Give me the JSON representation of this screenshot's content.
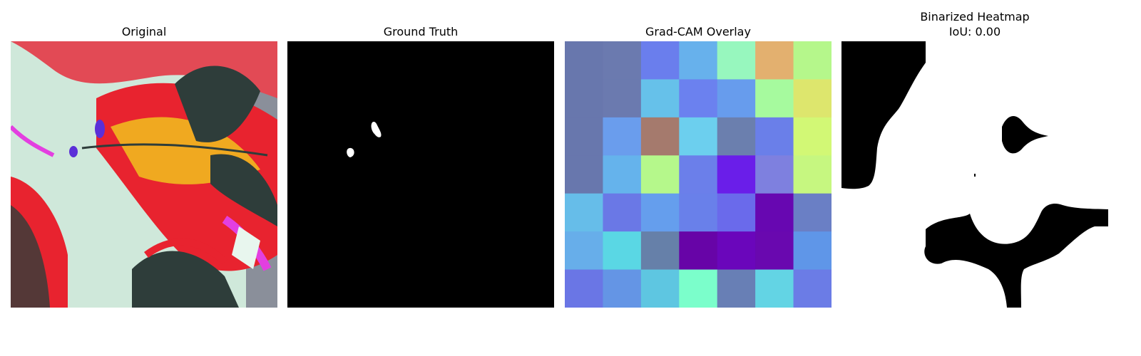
{
  "panels": {
    "original": {
      "title": "Original"
    },
    "ground_truth": {
      "title": "Ground Truth"
    },
    "gradcam": {
      "title": "Grad-CAM Overlay",
      "grid": [
        [
          "#6877ad",
          "#6b7aaf",
          "#6a7eed",
          "#67b1ec",
          "#97f7be",
          "#e3b06f",
          "#b5f78b"
        ],
        [
          "#6877ad",
          "#6b7aaf",
          "#66c1ea",
          "#6b81ef",
          "#679ced",
          "#a6fa9e",
          "#dde66d"
        ],
        [
          "#6877ad",
          "#6a9ded",
          "#a57a6d",
          "#6ccfee",
          "#6b7fae",
          "#6a7fe9",
          "#d2f875"
        ],
        [
          "#6877ad",
          "#65b3ec",
          "#b5f88b",
          "#6b7fea",
          "#6a1ee9",
          "#7e80df",
          "#c6f780"
        ],
        [
          "#66bde9",
          "#6a78e6",
          "#659eed",
          "#6980ea",
          "#6a6aeb",
          "#6707b1",
          "#6a7fc5"
        ],
        [
          "#67aeea",
          "#5ad7e4",
          "#6680a9",
          "#6704a7",
          "#6a06bb",
          "#6908af",
          "#5f96e8"
        ],
        [
          "#6a76e5",
          "#6495e5",
          "#5ec6e1",
          "#7bfecb",
          "#687fb5",
          "#63d4e4",
          "#6b7ce6"
        ]
      ]
    },
    "binarized": {
      "title_line1": "Binarized Heatmap",
      "title_line2": "IoU: 0.00"
    }
  }
}
